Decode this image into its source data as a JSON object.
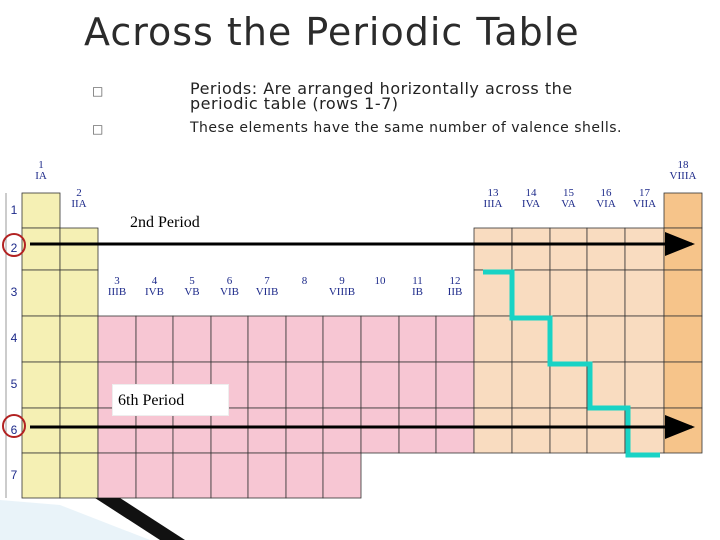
{
  "title": "Across the Periodic Table",
  "bullets": [
    {
      "icon": "bullet-box-icon",
      "text_line1": "Periods:  Are arranged horizontally across the",
      "text_line2": "periodic table (rows 1-7)"
    },
    {
      "icon": "bullet-box-icon",
      "text": "These elements have the same number of valence shells."
    }
  ],
  "groups": [
    {
      "num": "1",
      "name": "IA"
    },
    {
      "num": "2",
      "name": "IIA"
    },
    {
      "num": "3",
      "name": "IIIB"
    },
    {
      "num": "4",
      "name": "IVB"
    },
    {
      "num": "5",
      "name": "VB"
    },
    {
      "num": "6",
      "name": "VIB"
    },
    {
      "num": "7",
      "name": "VIIB"
    },
    {
      "num": "8",
      "name": ""
    },
    {
      "num": "9",
      "name": "VIIIB"
    },
    {
      "num": "10",
      "name": ""
    },
    {
      "num": "11",
      "name": "IB"
    },
    {
      "num": "12",
      "name": "IIB"
    },
    {
      "num": "13",
      "name": "IIIA"
    },
    {
      "num": "14",
      "name": "IVA"
    },
    {
      "num": "15",
      "name": "VA"
    },
    {
      "num": "16",
      "name": "VIA"
    },
    {
      "num": "17",
      "name": "VIIA"
    },
    {
      "num": "18",
      "name": "VIIIA"
    }
  ],
  "rows": [
    "1",
    "2",
    "3",
    "4",
    "5",
    "6",
    "7"
  ],
  "labels": {
    "period2": "2nd Period",
    "period6": "6th Period"
  },
  "colors": {
    "alkali": "#f5f0b4",
    "transition": "#f7c6d3",
    "pblock": "#f9dcc0",
    "noble": "#f6c48a",
    "staircase": "#19d3c5",
    "arrow": "#000000",
    "circle": "#b22222"
  }
}
